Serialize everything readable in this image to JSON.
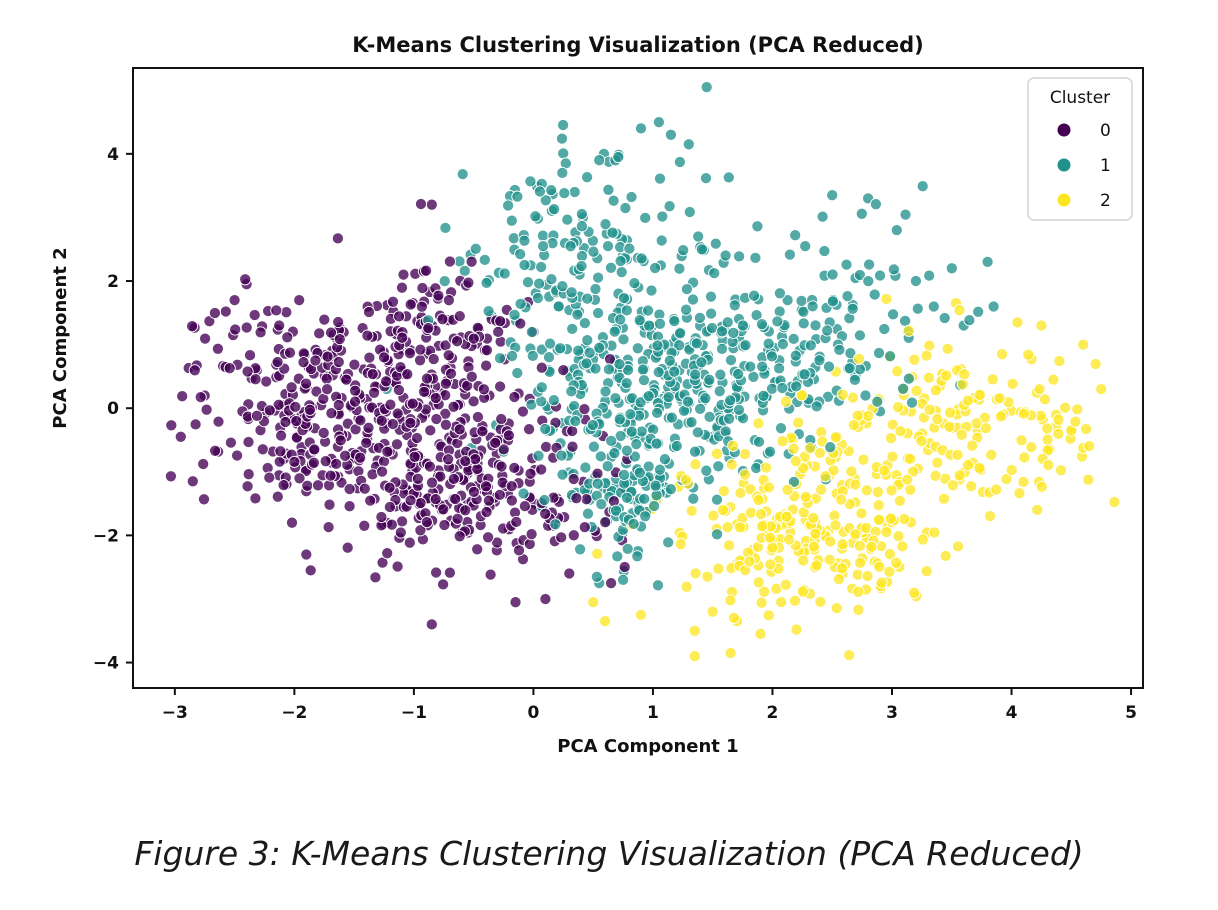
{
  "caption": "Figure 3: K-Means Clustering Visualization (PCA Reduced)",
  "chart_data": {
    "type": "scatter",
    "title": "K-Means Clustering Visualization (PCA Reduced)",
    "xlabel": "PCA Component 1",
    "ylabel": "PCA Component 2",
    "xlim": [
      -3.35,
      5.1
    ],
    "ylim": [
      -4.4,
      5.35
    ],
    "xticks": [
      -3,
      -2,
      -1,
      0,
      1,
      2,
      3,
      4,
      5
    ],
    "xtick_labels": [
      "−3",
      "−2",
      "−1",
      "0",
      "1",
      "2",
      "3",
      "4",
      "5"
    ],
    "yticks": [
      -4,
      -2,
      0,
      2,
      4
    ],
    "ytick_labels": [
      "−4",
      "−2",
      "0",
      "2",
      "4"
    ],
    "grid": false,
    "legend": {
      "title": "Cluster",
      "placement": "top-right"
    },
    "series": [
      {
        "name": "0",
        "color": "#440154",
        "cloud": {
          "count": 720,
          "seed": 11,
          "blobs": [
            {
              "cx": -1.7,
              "cy": 0.1,
              "sx": 0.55,
              "sy": 0.85,
              "w": 0.45
            },
            {
              "cx": -0.5,
              "cy": -1.3,
              "sx": 0.55,
              "sy": 0.6,
              "w": 0.35
            },
            {
              "cx": -0.8,
              "cy": 1.0,
              "sx": 0.35,
              "sy": 0.7,
              "w": 0.2
            }
          ]
        },
        "points": [
          {
            "x": -2.95,
            "y": -0.45
          },
          {
            "x": -2.85,
            "y": -1.15
          },
          {
            "x": -2.75,
            "y": 0.2
          },
          {
            "x": -2.5,
            "y": 1.7
          },
          {
            "x": -2.4,
            "y": 1.95
          },
          {
            "x": -1.9,
            "y": -2.3
          },
          {
            "x": -0.85,
            "y": 3.2
          },
          {
            "x": -0.85,
            "y": -3.4
          },
          {
            "x": -0.15,
            "y": -3.05
          },
          {
            "x": 0.1,
            "y": -3.0
          },
          {
            "x": 0.3,
            "y": -2.6
          },
          {
            "x": 0.65,
            "y": -2.75
          },
          {
            "x": 0.0,
            "y": 1.2
          },
          {
            "x": 0.25,
            "y": 0.6
          }
        ]
      },
      {
        "name": "1",
        "color": "#21918c",
        "cloud": {
          "count": 760,
          "seed": 23,
          "blobs": [
            {
              "cx": 1.1,
              "cy": 0.2,
              "sx": 0.6,
              "sy": 0.75,
              "w": 0.5
            },
            {
              "cx": 0.3,
              "cy": 2.3,
              "sx": 0.55,
              "sy": 0.8,
              "w": 0.2
            },
            {
              "cx": 2.2,
              "cy": 1.3,
              "sx": 0.6,
              "sy": 0.8,
              "w": 0.2
            },
            {
              "cx": 0.8,
              "cy": -1.5,
              "sx": 0.25,
              "sy": 0.5,
              "w": 0.1
            }
          ]
        },
        "points": [
          {
            "x": 1.45,
            "y": 5.05
          },
          {
            "x": 0.9,
            "y": 4.4
          },
          {
            "x": 1.05,
            "y": 4.5
          },
          {
            "x": 1.15,
            "y": 4.3
          },
          {
            "x": 1.3,
            "y": 4.15
          },
          {
            "x": 0.55,
            "y": 3.9
          },
          {
            "x": 2.5,
            "y": 3.35
          },
          {
            "x": 2.8,
            "y": 3.3
          },
          {
            "x": 3.5,
            "y": 2.2
          },
          {
            "x": 3.8,
            "y": 2.3
          },
          {
            "x": 3.35,
            "y": 1.6
          },
          {
            "x": 3.6,
            "y": 1.3
          },
          {
            "x": 3.85,
            "y": 1.6
          },
          {
            "x": 3.2,
            "y": 2.0
          },
          {
            "x": 0.55,
            "y": -2.75
          },
          {
            "x": 0.75,
            "y": -2.7
          },
          {
            "x": 2.9,
            "y": -0.05
          }
        ]
      },
      {
        "name": "2",
        "color": "#fde725",
        "cloud": {
          "count": 430,
          "seed": 37,
          "blobs": [
            {
              "cx": 2.3,
              "cy": -1.9,
              "sx": 0.55,
              "sy": 0.7,
              "w": 0.6
            },
            {
              "cx": 3.6,
              "cy": -0.3,
              "sx": 0.55,
              "sy": 0.65,
              "w": 0.4
            }
          ]
        },
        "points": [
          {
            "x": 0.5,
            "y": -3.05
          },
          {
            "x": 0.6,
            "y": -3.35
          },
          {
            "x": 0.9,
            "y": -3.25
          },
          {
            "x": 1.35,
            "y": -3.5
          },
          {
            "x": 1.35,
            "y": -3.9
          },
          {
            "x": 1.65,
            "y": -3.85
          },
          {
            "x": 1.5,
            "y": -3.2
          },
          {
            "x": 1.9,
            "y": -3.55
          },
          {
            "x": 4.05,
            "y": 1.35
          },
          {
            "x": 4.25,
            "y": 1.3
          },
          {
            "x": 4.6,
            "y": 1.0
          },
          {
            "x": 4.75,
            "y": 0.3
          },
          {
            "x": 4.5,
            "y": -0.35
          },
          {
            "x": 4.35,
            "y": 0.45
          }
        ]
      }
    ]
  }
}
